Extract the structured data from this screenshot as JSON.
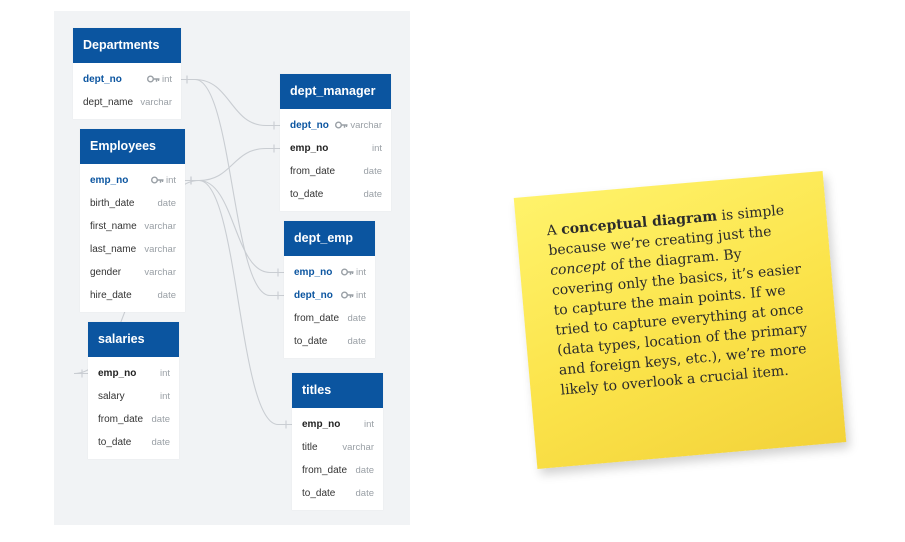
{
  "tables": [
    {
      "id": "departments",
      "title": "Departments",
      "fields": [
        {
          "name": "dept_no",
          "type": "int",
          "pk": true,
          "key": true
        },
        {
          "name": "dept_name",
          "type": "varchar"
        }
      ]
    },
    {
      "id": "employees",
      "title": "Employees",
      "fields": [
        {
          "name": "emp_no",
          "type": "int",
          "pk": true,
          "key": true
        },
        {
          "name": "birth_date",
          "type": "date"
        },
        {
          "name": "first_name",
          "type": "varchar"
        },
        {
          "name": "last_name",
          "type": "varchar"
        },
        {
          "name": "gender",
          "type": "varchar"
        },
        {
          "name": "hire_date",
          "type": "date"
        }
      ]
    },
    {
      "id": "salaries",
      "title": "salaries",
      "fields": [
        {
          "name": "emp_no",
          "type": "int",
          "bold": true
        },
        {
          "name": "salary",
          "type": "int"
        },
        {
          "name": "from_date",
          "type": "date"
        },
        {
          "name": "to_date",
          "type": "date"
        }
      ]
    },
    {
      "id": "dept_manager",
      "title": "dept_manager",
      "fields": [
        {
          "name": "dept_no",
          "type": "varchar",
          "pk": true,
          "key": true
        },
        {
          "name": "emp_no",
          "type": "int",
          "bold": true
        },
        {
          "name": "from_date",
          "type": "date"
        },
        {
          "name": "to_date",
          "type": "date"
        }
      ]
    },
    {
      "id": "dept_emp",
      "title": "dept_emp",
      "fields": [
        {
          "name": "emp_no",
          "type": "int",
          "pk": true,
          "key": true
        },
        {
          "name": "dept_no",
          "type": "int",
          "pk": true,
          "key": true
        },
        {
          "name": "from_date",
          "type": "date"
        },
        {
          "name": "to_date",
          "type": "date"
        }
      ]
    },
    {
      "id": "titles",
      "title": "titles",
      "fields": [
        {
          "name": "emp_no",
          "type": "int",
          "bold": true
        },
        {
          "name": "title",
          "type": "varchar"
        },
        {
          "name": "from_date",
          "type": "date"
        },
        {
          "name": "to_date",
          "type": "date"
        }
      ]
    }
  ],
  "note": {
    "pre": "A ",
    "bold": "conceptual diagram",
    "mid1": " is simple because we’re creating just the ",
    "italic": "concept",
    "mid2": " of the diagram. By covering only the basics, it’s easier to capture the main points. If we tried to capture everything at once (data types, location of the primary and foreign keys, etc.), we’re more likely to overlook a crucial item."
  },
  "colors": {
    "header": "#0b55a0",
    "note": "#fbe34a",
    "canvas": "#f1f3f5"
  },
  "relationships": [
    {
      "from": "departments.dept_no",
      "to": "dept_manager.dept_no"
    },
    {
      "from": "departments.dept_no",
      "to": "dept_emp.dept_no"
    },
    {
      "from": "employees.emp_no",
      "to": "dept_manager.emp_no"
    },
    {
      "from": "employees.emp_no",
      "to": "dept_emp.emp_no"
    },
    {
      "from": "employees.emp_no",
      "to": "titles.emp_no"
    },
    {
      "from": "employees.emp_no",
      "to": "salaries.emp_no"
    }
  ]
}
